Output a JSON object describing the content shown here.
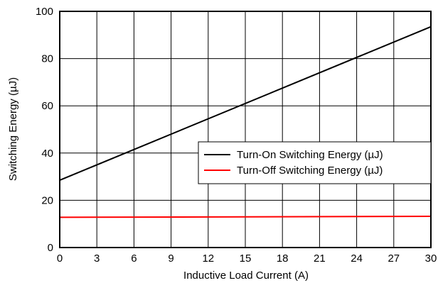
{
  "chart_data": {
    "type": "line",
    "title": "",
    "xlabel": "Inductive Load Current (A)",
    "ylabel": "Switching Energy (µJ)",
    "xlim": [
      0,
      30
    ],
    "ylim": [
      0,
      100
    ],
    "xticks": [
      0,
      3,
      6,
      9,
      12,
      15,
      18,
      21,
      24,
      27,
      30
    ],
    "yticks": [
      0,
      20,
      40,
      60,
      80,
      100
    ],
    "grid": true,
    "legend_position": "center-right",
    "series": [
      {
        "name": "Turn-On Switching Energy (µJ)",
        "color": "#000000",
        "x": [
          0,
          30
        ],
        "y": [
          28.5,
          93.5
        ]
      },
      {
        "name": "Turn-Off Switching Energy (µJ)",
        "color": "#ff0000",
        "x": [
          0,
          30
        ],
        "y": [
          12.8,
          13.2
        ]
      }
    ]
  }
}
